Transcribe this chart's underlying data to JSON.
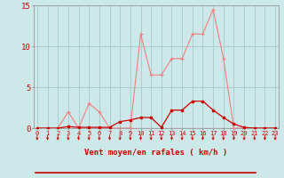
{
  "x_labels": [
    0,
    1,
    2,
    3,
    4,
    5,
    6,
    7,
    8,
    9,
    10,
    11,
    12,
    13,
    14,
    15,
    16,
    17,
    18,
    19,
    20,
    21,
    22,
    23
  ],
  "rafales_y": [
    0,
    0,
    0,
    2,
    0,
    3,
    2,
    0,
    0,
    0,
    11.5,
    6.5,
    6.5,
    8.5,
    8.5,
    11.5,
    11.5,
    14.5,
    8.5,
    0,
    0,
    0,
    0,
    0
  ],
  "moyen_y": [
    0,
    0,
    0,
    0.2,
    0.1,
    0.1,
    0.1,
    0.1,
    0.8,
    1.0,
    1.3,
    1.3,
    0.1,
    2.2,
    2.2,
    3.3,
    3.3,
    2.2,
    1.3,
    0.5,
    0.1,
    0,
    0,
    0
  ],
  "arrows_x": [
    0,
    1,
    2,
    3,
    4,
    5,
    6,
    7,
    8,
    9,
    10,
    11,
    12,
    13,
    14,
    15,
    16,
    17,
    18,
    19,
    20,
    21,
    22,
    23
  ],
  "bg_color": "#cce8e8",
  "grid_color": "#aacece",
  "line_color_rafales": "#f08080",
  "line_color_moyen": "#cc0000",
  "arrow_color": "#cc0000",
  "axis_color": "#cc0000",
  "xlabel": "Vent moyen/en rafales ( km/h )",
  "ylim": [
    0,
    15
  ],
  "yticks": [
    0,
    5,
    10,
    15
  ],
  "xlim": [
    -0.3,
    23.3
  ]
}
